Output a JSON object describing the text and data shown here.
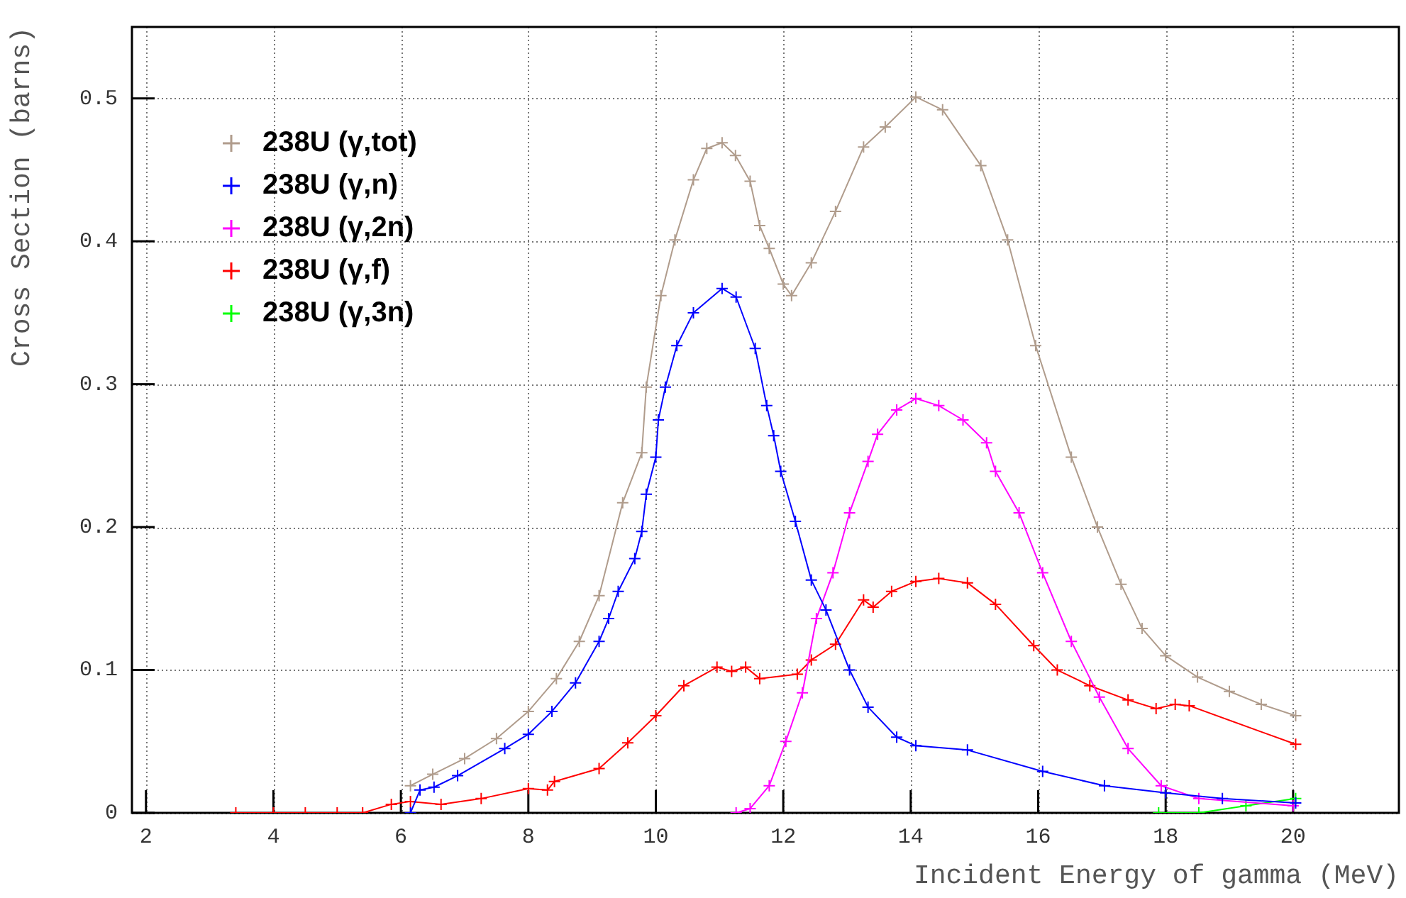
{
  "chart_data": {
    "type": "line",
    "xlabel": "Incident Energy of gamma (MeV)",
    "ylabel": "Cross Section (barns)",
    "xlim": [
      1.78,
      21.66
    ],
    "xticks": [
      2,
      4,
      6,
      8,
      10,
      12,
      14,
      16,
      18,
      20
    ],
    "ylim": [
      0,
      0.55
    ],
    "yticks": [
      0,
      0.1,
      0.2,
      0.3,
      0.4,
      0.5
    ],
    "grid": true,
    "legend": "top left",
    "marker": "cross",
    "line_style": "solid",
    "series": [
      {
        "name": "238U (γ,tot)",
        "color": "#b09c8c",
        "x": [
          6.15,
          6.5,
          7,
          7.5,
          8,
          8.44,
          8.8,
          9.11,
          9.48,
          9.78,
          9.85,
          10.08,
          10.3,
          10.59,
          10.8,
          11.04,
          11.25,
          11.48,
          11.63,
          11.78,
          12.0,
          12.13,
          12.44,
          12.82,
          13.26,
          13.6,
          14.08,
          14.5,
          15.1,
          15.52,
          15.96,
          16.52,
          16.93,
          17.3,
          17.63,
          18.0,
          18.5,
          19.0,
          19.5,
          20.04
        ],
        "values": [
          0.019,
          0.027,
          0.038,
          0.052,
          0.071,
          0.094,
          0.12,
          0.152,
          0.217,
          0.252,
          0.298,
          0.362,
          0.401,
          0.443,
          0.465,
          0.469,
          0.46,
          0.442,
          0.411,
          0.395,
          0.37,
          0.362,
          0.385,
          0.421,
          0.466,
          0.48,
          0.501,
          0.492,
          0.453,
          0.401,
          0.327,
          0.249,
          0.2,
          0.16,
          0.129,
          0.11,
          0.095,
          0.085,
          0.076,
          0.068
        ]
      },
      {
        "name": "238U (γ,n)",
        "color": "#0000ff",
        "x": [
          6.15,
          6.3,
          6.52,
          6.89,
          7.63,
          8.0,
          8.37,
          8.74,
          9.11,
          9.26,
          9.41,
          9.67,
          9.78,
          9.85,
          10.0,
          10.04,
          10.15,
          10.33,
          10.59,
          11.04,
          11.26,
          11.56,
          11.74,
          11.85,
          11.96,
          12.19,
          12.44,
          12.67,
          13.04,
          13.33,
          13.78,
          14.08,
          14.89,
          16.07,
          17.04,
          18.0,
          18.89,
          20.04
        ],
        "values": [
          0,
          0.016,
          0.018,
          0.026,
          0.045,
          0.055,
          0.071,
          0.091,
          0.12,
          0.136,
          0.155,
          0.178,
          0.197,
          0.223,
          0.249,
          0.275,
          0.298,
          0.327,
          0.35,
          0.367,
          0.361,
          0.325,
          0.285,
          0.264,
          0.239,
          0.204,
          0.163,
          0.142,
          0.1,
          0.074,
          0.053,
          0.047,
          0.044,
          0.029,
          0.019,
          0.014,
          0.01,
          0.007
        ]
      },
      {
        "name": "238U (γ,2n)",
        "color": "#ff00ff",
        "x": [
          11.26,
          11.48,
          11.78,
          12.04,
          12.3,
          12.52,
          12.78,
          13.04,
          13.33,
          13.48,
          13.78,
          14.08,
          14.44,
          14.82,
          15.19,
          15.33,
          15.7,
          16.07,
          16.52,
          16.96,
          17.41,
          17.93,
          18.52,
          20.0
        ],
        "values": [
          0,
          0.003,
          0.019,
          0.05,
          0.084,
          0.136,
          0.168,
          0.21,
          0.246,
          0.265,
          0.282,
          0.29,
          0.285,
          0.275,
          0.259,
          0.239,
          0.21,
          0.168,
          0.12,
          0.081,
          0.045,
          0.019,
          0.01,
          0.005
        ]
      },
      {
        "name": "238U (γ,f)",
        "color": "#ff0000",
        "x": [
          3.41,
          4.0,
          4.5,
          5.0,
          5.4,
          5.85,
          6.15,
          6.63,
          7.26,
          8.0,
          8.3,
          8.41,
          9.11,
          9.56,
          10.0,
          10.44,
          10.96,
          11.19,
          11.41,
          11.63,
          12.22,
          12.44,
          12.82,
          13.26,
          13.41,
          13.7,
          14.08,
          14.44,
          14.89,
          15.33,
          15.93,
          16.3,
          16.81,
          17.41,
          17.85,
          18.15,
          18.37,
          20.04
        ],
        "values": [
          0,
          0,
          0,
          0,
          0,
          0.006,
          0.008,
          0.006,
          0.01,
          0.017,
          0.016,
          0.022,
          0.031,
          0.049,
          0.068,
          0.089,
          0.102,
          0.099,
          0.102,
          0.094,
          0.097,
          0.107,
          0.118,
          0.149,
          0.144,
          0.155,
          0.162,
          0.164,
          0.161,
          0.146,
          0.117,
          0.1,
          0.089,
          0.079,
          0.073,
          0.076,
          0.075,
          0.048
        ]
      },
      {
        "name": "238U (γ,3n)",
        "color": "#00ff00",
        "x": [
          17.89,
          18.52,
          19.26,
          20.04
        ],
        "values": [
          0,
          0,
          0.005,
          0.01
        ]
      }
    ]
  }
}
